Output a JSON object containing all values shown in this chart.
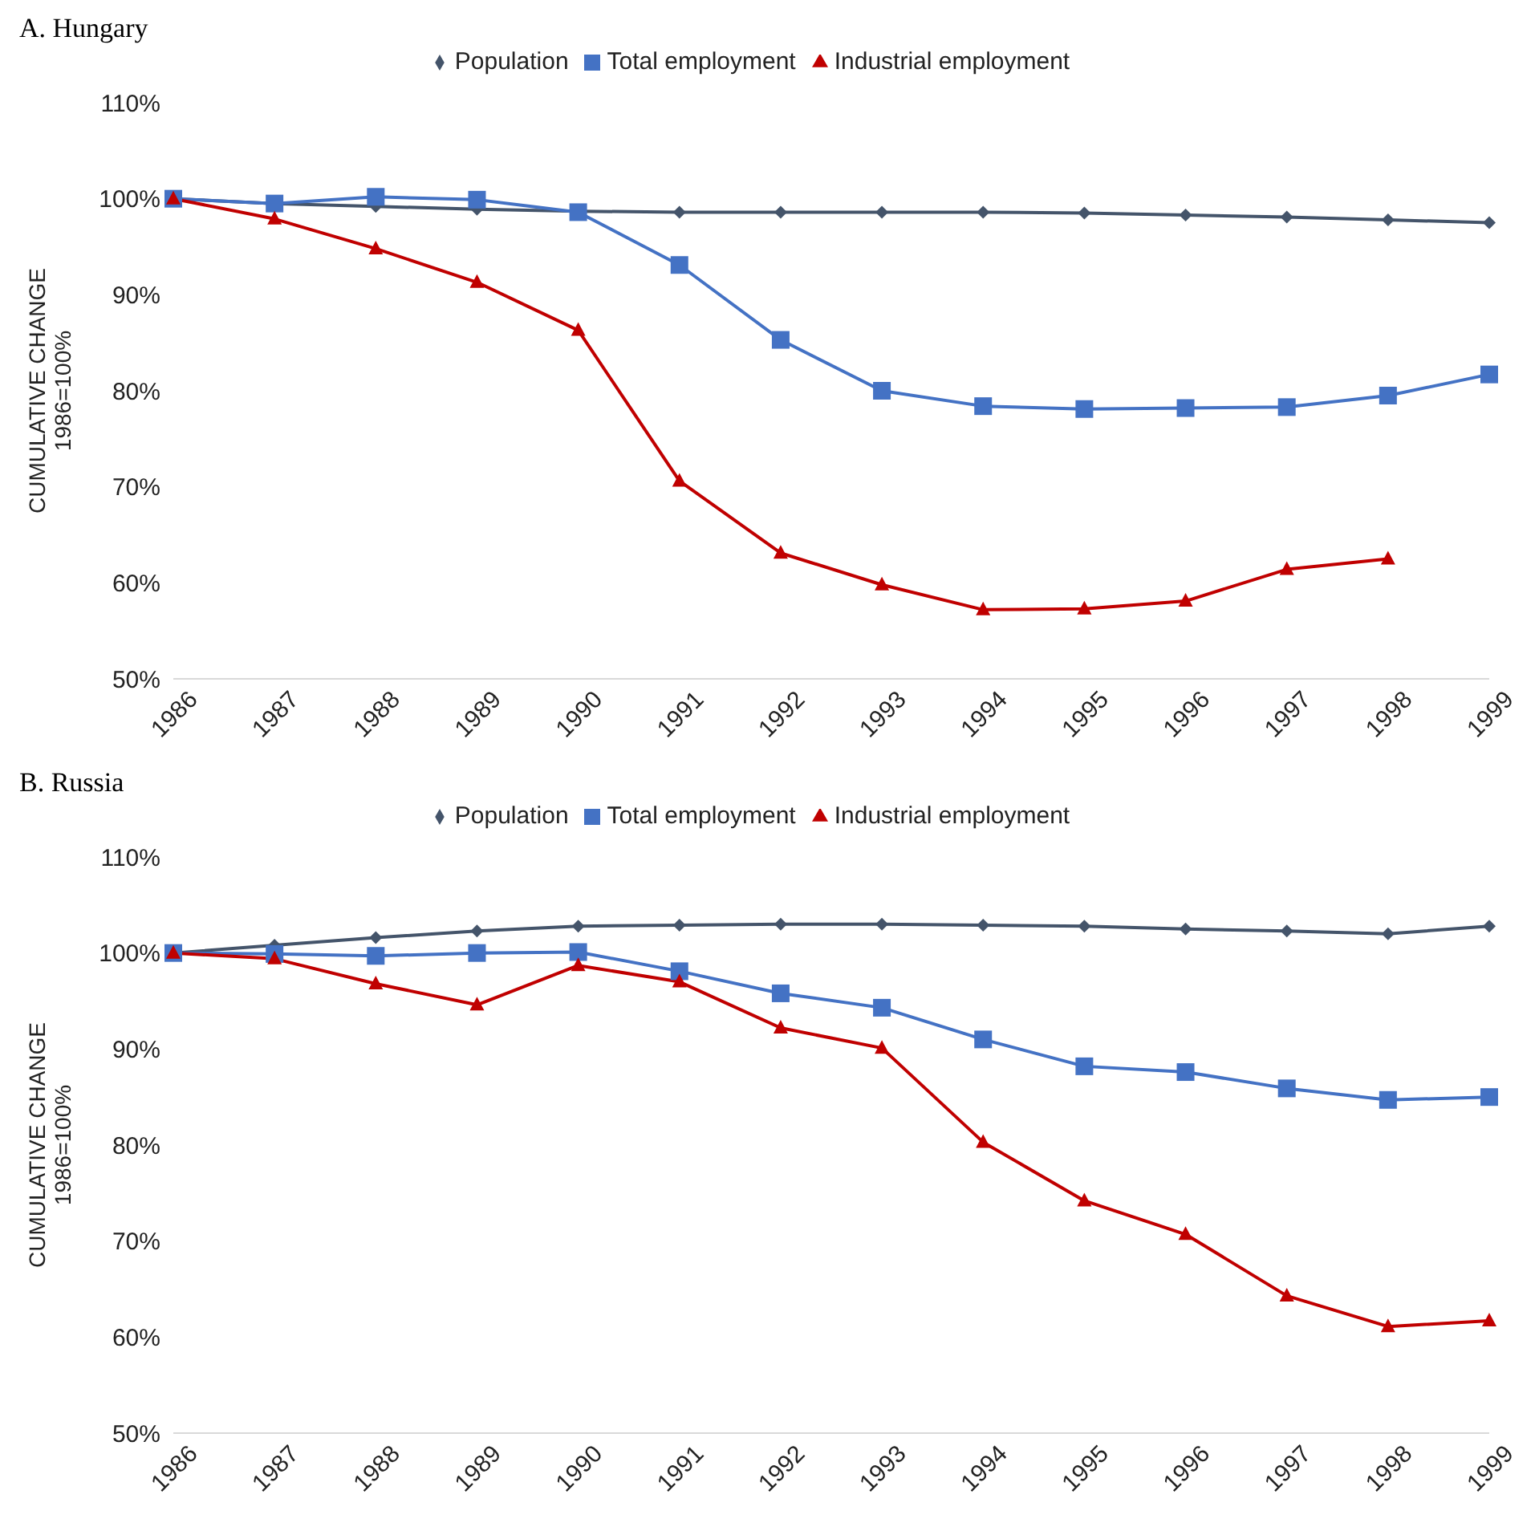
{
  "chart_data": [
    {
      "type": "line",
      "title": "A. Hungary",
      "ylabel": "CUMULATIVE CHANGE\n1986=100%",
      "categories": [
        "1986",
        "1987",
        "1988",
        "1989",
        "1990",
        "1991",
        "1992",
        "1993",
        "1994",
        "1995",
        "1996",
        "1997",
        "1998",
        "1999"
      ],
      "ylim": [
        50,
        110
      ],
      "yticks": [
        {
          "value": 50,
          "label": "50%"
        },
        {
          "value": 60,
          "label": "60%"
        },
        {
          "value": 70,
          "label": "70%"
        },
        {
          "value": 80,
          "label": "80%"
        },
        {
          "value": 90,
          "label": "90%"
        },
        {
          "value": 100,
          "label": "100%"
        },
        {
          "value": 110,
          "label": "110%"
        }
      ],
      "grid": false,
      "legend": "top",
      "series": [
        {
          "name": "Population",
          "color": "#44546a",
          "marker": "diamond",
          "values": [
            100,
            99.5,
            99.2,
            98.9,
            98.7,
            98.6,
            98.6,
            98.6,
            98.6,
            98.5,
            98.3,
            98.1,
            97.8,
            97.5
          ]
        },
        {
          "name": "Total employment",
          "color": "#4472c4",
          "marker": "square",
          "values": [
            100,
            99.5,
            100.2,
            99.9,
            98.6,
            93.1,
            85.3,
            80.0,
            78.4,
            78.1,
            78.2,
            78.3,
            79.5,
            81.7
          ]
        },
        {
          "name": "Industrial employment",
          "color": "#c00000",
          "marker": "triangle",
          "values": [
            100,
            97.9,
            94.8,
            91.3,
            86.3,
            70.6,
            63.1,
            59.8,
            57.2,
            57.3,
            58.1,
            61.4,
            62.5,
            null
          ]
        }
      ]
    },
    {
      "type": "line",
      "title": "B. Russia",
      "ylabel": "CUMULATIVE CHANGE\n1986=100%",
      "categories": [
        "1986",
        "1987",
        "1988",
        "1989",
        "1990",
        "1991",
        "1992",
        "1993",
        "1994",
        "1995",
        "1996",
        "1997",
        "1998",
        "1999"
      ],
      "ylim": [
        50,
        110
      ],
      "yticks": [
        {
          "value": 50,
          "label": "50%"
        },
        {
          "value": 60,
          "label": "60%"
        },
        {
          "value": 70,
          "label": "70%"
        },
        {
          "value": 80,
          "label": "80%"
        },
        {
          "value": 90,
          "label": "90%"
        },
        {
          "value": 100,
          "label": "100%"
        },
        {
          "value": 110,
          "label": "110%"
        }
      ],
      "grid": false,
      "legend": "top",
      "series": [
        {
          "name": "Population",
          "color": "#44546a",
          "marker": "diamond",
          "values": [
            100,
            100.8,
            101.6,
            102.3,
            102.8,
            102.9,
            103.0,
            103.0,
            102.9,
            102.8,
            102.5,
            102.3,
            102.0,
            102.8
          ]
        },
        {
          "name": "Total employment",
          "color": "#4472c4",
          "marker": "square",
          "values": [
            100,
            99.9,
            99.7,
            100.0,
            100.1,
            98.1,
            95.8,
            94.3,
            91.0,
            88.2,
            87.6,
            85.9,
            84.7,
            85.0
          ]
        },
        {
          "name": "Industrial employment",
          "color": "#c00000",
          "marker": "triangle",
          "values": [
            100,
            99.4,
            96.8,
            94.6,
            98.7,
            97.0,
            92.2,
            90.1,
            80.3,
            74.2,
            70.7,
            64.3,
            61.1,
            61.7
          ]
        }
      ]
    }
  ]
}
